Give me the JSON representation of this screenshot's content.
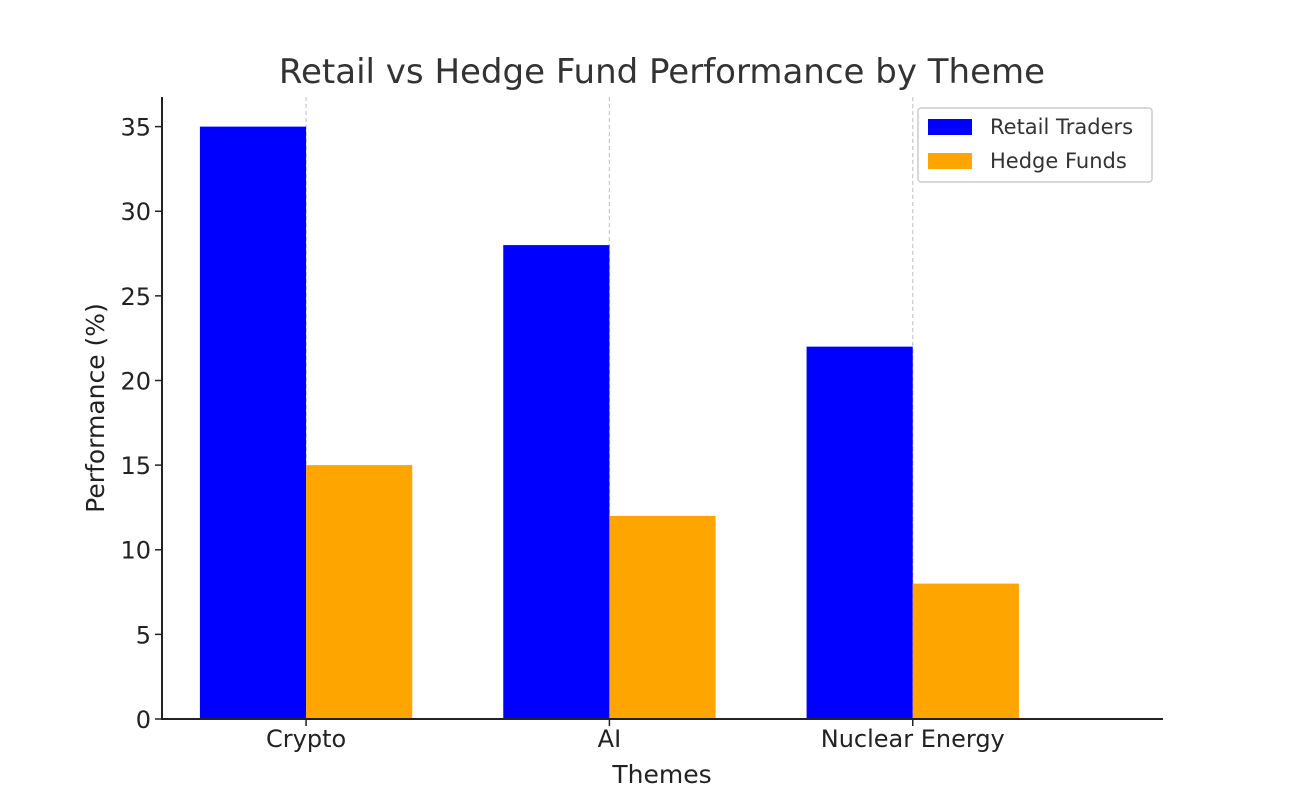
{
  "chart_data": {
    "type": "bar",
    "title": "Retail vs Hedge Fund Performance by Theme",
    "xlabel": "Themes",
    "ylabel": "Performance (%)",
    "categories": [
      "Crypto",
      "AI",
      "Nuclear Energy"
    ],
    "series": [
      {
        "name": "Retail Traders",
        "values": [
          35,
          28,
          22
        ],
        "color": "#0000ff"
      },
      {
        "name": "Hedge Funds",
        "values": [
          15,
          12,
          8
        ],
        "color": "#ffa500"
      }
    ],
    "ylim": [
      0,
      36.75
    ],
    "yticks": [
      0,
      5,
      10,
      15,
      20,
      25,
      30,
      35
    ],
    "grid": "x-dashed",
    "legend_position": "top-right"
  }
}
